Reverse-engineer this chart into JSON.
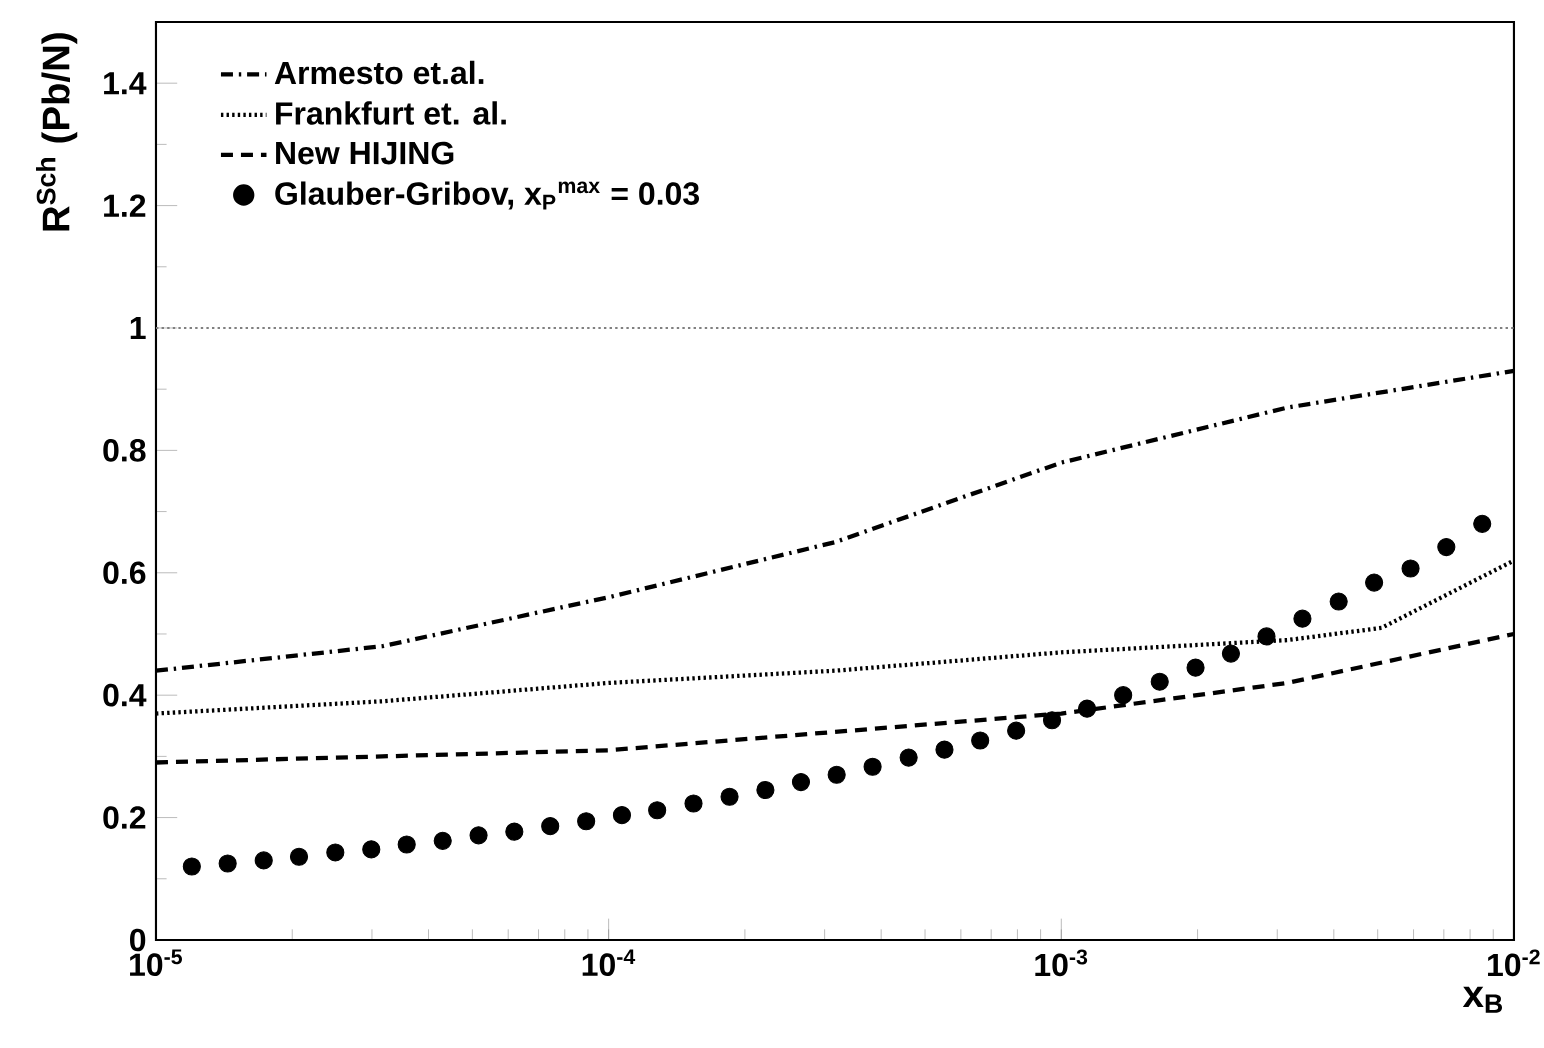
{
  "chart_data": {
    "type": "line",
    "xlabel": "x$_{B}$",
    "ylabel": "R$^{Sch}$ (Pb/N)",
    "log": "x",
    "xlim": [
      1e-05,
      0.01
    ],
    "ylim": [
      0,
      1.5
    ],
    "xticks": [
      {
        "value": 1e-05,
        "label": "10$^{-5}$"
      },
      {
        "value": 0.0001,
        "label": "10$^{-4}$"
      },
      {
        "value": 0.001,
        "label": "10$^{-3}$"
      },
      {
        "value": 0.01,
        "label": "10$^{-2}$"
      }
    ],
    "yticks": [
      0,
      0.2,
      0.4,
      0.6,
      0.8,
      1,
      1.2,
      1.4
    ],
    "grid": false,
    "legend": "top left",
    "ref_lines": [
      {
        "axis": "y",
        "value": 1,
        "color": "#808080",
        "line_style": "dotted"
      }
    ],
    "series": [
      {
        "name": "Armesto et.al.",
        "color": "#000000",
        "line_style": "dashdot",
        "marker": "none",
        "x": [
          1e-05,
          3.16e-05,
          0.0001,
          0.000316,
          0.001,
          0.00316,
          0.01
        ],
        "values": [
          0.44,
          0.48,
          0.56,
          0.65,
          0.78,
          0.87,
          0.93
        ]
      },
      {
        "name": "Frankfurt et. al.",
        "color": "#000000",
        "line_style": "dotted",
        "marker": "none",
        "x": [
          1e-05,
          3.16e-05,
          0.0001,
          0.000316,
          0.001,
          0.00316,
          0.0051,
          0.01
        ],
        "values": [
          0.37,
          0.39,
          0.42,
          0.44,
          0.47,
          0.49,
          0.51,
          0.62
        ]
      },
      {
        "name": "New HIJING",
        "color": "#000000",
        "line_style": "dashed",
        "marker": "none",
        "x": [
          1e-05,
          3.16e-05,
          0.0001,
          0.000316,
          0.001,
          0.00316,
          0.01
        ],
        "values": [
          0.29,
          0.3,
          0.31,
          0.34,
          0.37,
          0.42,
          0.5
        ]
      },
      {
        "name": "Glauber-Gribov, x$_{P}$$^{max}$ = 0.03",
        "type": "scatter",
        "color": "#000000",
        "marker": "circle",
        "x": [
          1.2e-05,
          1.44e-05,
          1.73e-05,
          2.07e-05,
          2.49e-05,
          2.99e-05,
          3.58e-05,
          4.3e-05,
          5.16e-05,
          6.19e-05,
          7.43e-05,
          8.92e-05,
          0.000107,
          0.000128,
          0.000154,
          0.000185,
          0.000222,
          0.000266,
          0.000319,
          0.000383,
          0.00046,
          0.000552,
          0.000662,
          0.000795,
          0.000954,
          0.00114,
          0.00137,
          0.00165,
          0.00198,
          0.00237,
          0.00284,
          0.00341,
          0.0041,
          0.00491,
          0.00591,
          0.00709,
          0.00851
        ],
        "values": [
          0.12,
          0.125,
          0.13,
          0.136,
          0.143,
          0.148,
          0.156,
          0.162,
          0.171,
          0.177,
          0.186,
          0.194,
          0.204,
          0.212,
          0.223,
          0.234,
          0.245,
          0.258,
          0.27,
          0.283,
          0.298,
          0.311,
          0.326,
          0.342,
          0.359,
          0.378,
          0.4,
          0.422,
          0.445,
          0.468,
          0.496,
          0.525,
          0.553,
          0.584,
          0.607,
          0.642,
          0.68
        ]
      }
    ]
  }
}
